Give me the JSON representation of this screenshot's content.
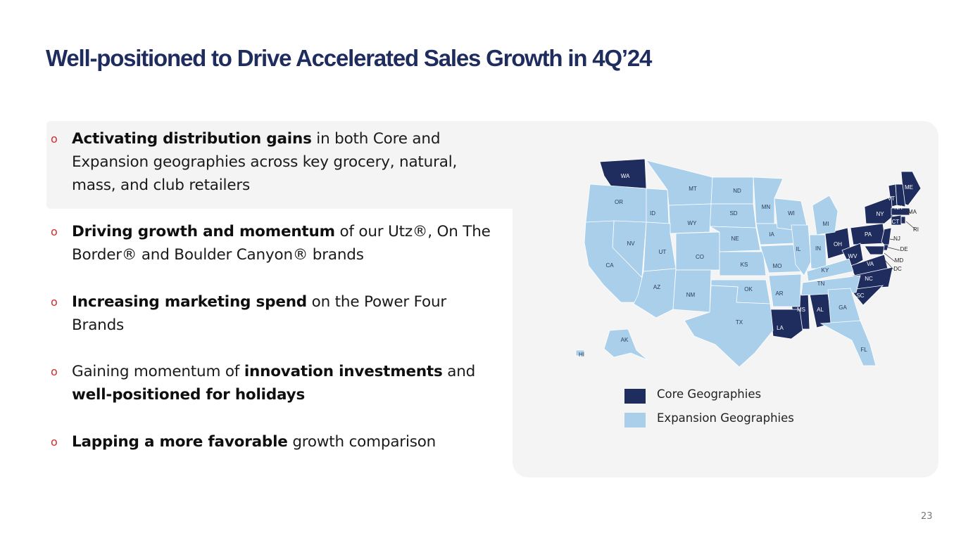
{
  "title": "Well-positioned to Drive Accelerated Sales Growth in 4Q’24",
  "bullet_marker": "o",
  "bullets": [
    {
      "segments": [
        {
          "text": "Activating distribution gains",
          "bold": true
        },
        {
          "text": " in both Core and Expansion geographies across key grocery, natural, mass, and club retailers",
          "bold": false
        }
      ]
    },
    {
      "segments": [
        {
          "text": "Driving growth and momentum",
          "bold": true
        },
        {
          "text": " of our Utz®, On The Border® and Boulder Canyon® brands",
          "bold": false
        }
      ]
    },
    {
      "segments": [
        {
          "text": "Increasing marketing spend",
          "bold": true
        },
        {
          "text": " on the Power Four Brands",
          "bold": false
        }
      ]
    },
    {
      "segments": [
        {
          "text": "Gaining momentum of ",
          "bold": false
        },
        {
          "text": "innovation investments",
          "bold": true
        },
        {
          "text": " and ",
          "bold": false
        },
        {
          "text": "well-positioned for holidays",
          "bold": true
        }
      ]
    },
    {
      "segments": [
        {
          "text": "Lapping a more favorable",
          "bold": true
        },
        {
          "text": " growth comparison",
          "bold": false
        }
      ]
    }
  ],
  "map": {
    "core_color": "#1f2c5e",
    "expansion_color": "#a9cfeb",
    "core_states": [
      "WA",
      "ME",
      "VT",
      "NH",
      "NY",
      "MA",
      "CT",
      "RI",
      "PA",
      "NJ",
      "DE",
      "MD",
      "DC",
      "OH",
      "WV",
      "VA",
      "NC",
      "SC",
      "MS",
      "AL",
      "LA"
    ],
    "expansion_states": [
      "OR",
      "ID",
      "MT",
      "ND",
      "SD",
      "WY",
      "NV",
      "CA",
      "UT",
      "CO",
      "AZ",
      "NM",
      "NE",
      "KS",
      "OK",
      "TX",
      "MN",
      "IA",
      "MO",
      "AR",
      "WI",
      "IL",
      "MI",
      "IN",
      "KY",
      "TN",
      "GA",
      "FL",
      "AK",
      "HI"
    ]
  },
  "legend": {
    "core_label": "Core Geographies",
    "expansion_label": "Expansion Geographies"
  },
  "page_number": "23"
}
